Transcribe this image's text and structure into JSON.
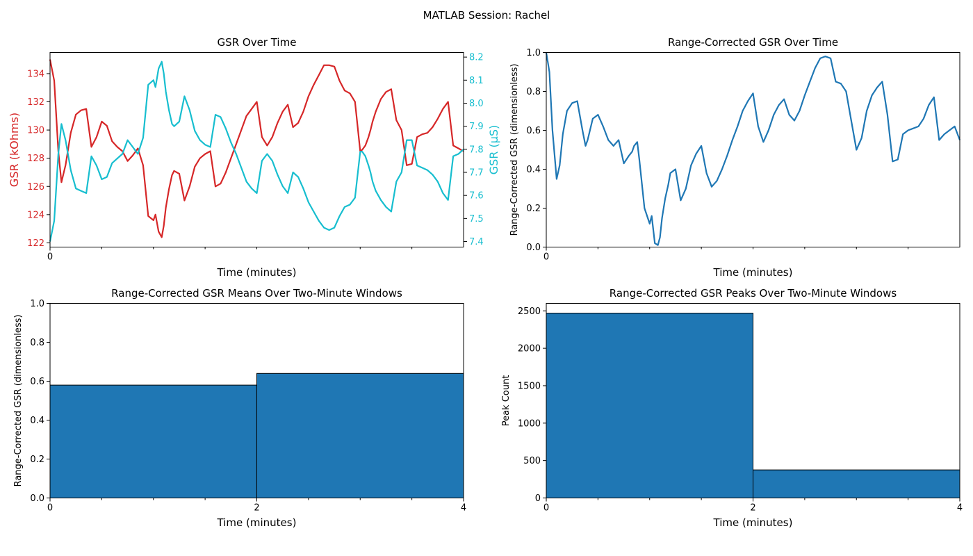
{
  "figure": {
    "suptitle": "MATLAB Session: Rachel"
  },
  "colors": {
    "red": "#d62728",
    "cyan": "#17becf",
    "blue": "#1f77b4",
    "edge": "#000000"
  },
  "chart_data": [
    {
      "type": "line",
      "title": "GSR Over Time",
      "xlabel": "Time (minutes)",
      "xlim": [
        0,
        4
      ],
      "x_ticks": [
        {
          "value": 0,
          "label": "0"
        }
      ],
      "x_minor_ticks": [
        0.5,
        1,
        1.5,
        2,
        2.5,
        3,
        3.5
      ],
      "ylabel_left": "GSR (kOhms)",
      "ylim_left": [
        121.7,
        135.5
      ],
      "yticks_left": [
        122,
        124,
        126,
        128,
        130,
        132,
        134
      ],
      "ylabel_right": "GSR (μS)",
      "ylim_right": [
        7.376,
        8.22
      ],
      "yticks_right": [
        7.4,
        7.5,
        7.6,
        7.7,
        7.8,
        7.9,
        8.0,
        8.1,
        8.2
      ],
      "series": [
        {
          "axis": "left",
          "color": "#d62728",
          "x": [
            0,
            0.04,
            0.08,
            0.11,
            0.15,
            0.2,
            0.25,
            0.3,
            0.35,
            0.4,
            0.45,
            0.5,
            0.55,
            0.6,
            0.65,
            0.7,
            0.75,
            0.8,
            0.85,
            0.9,
            0.95,
            1.0,
            1.02,
            1.05,
            1.08,
            1.1,
            1.12,
            1.15,
            1.18,
            1.2,
            1.25,
            1.3,
            1.35,
            1.4,
            1.45,
            1.5,
            1.55,
            1.6,
            1.65,
            1.7,
            1.75,
            1.8,
            1.85,
            1.9,
            1.95,
            2.0,
            2.05,
            2.1,
            2.15,
            2.2,
            2.25,
            2.3,
            2.35,
            2.4,
            2.45,
            2.5,
            2.55,
            2.6,
            2.65,
            2.7,
            2.75,
            2.8,
            2.85,
            2.9,
            2.95,
            3.0,
            3.02,
            3.05,
            3.08,
            3.1,
            3.12,
            3.15,
            3.2,
            3.25,
            3.3,
            3.35,
            3.4,
            3.45,
            3.5,
            3.55,
            3.6,
            3.65,
            3.7,
            3.75,
            3.8,
            3.85,
            3.9,
            3.95,
            4.0
          ],
          "y": [
            135.0,
            133.5,
            128.5,
            126.3,
            127.5,
            129.8,
            131.1,
            131.4,
            131.5,
            128.8,
            129.5,
            130.6,
            130.3,
            129.2,
            128.8,
            128.5,
            127.8,
            128.2,
            128.7,
            127.5,
            123.9,
            123.6,
            124.0,
            122.8,
            122.4,
            123.2,
            124.5,
            125.8,
            126.8,
            127.1,
            126.9,
            125.0,
            126.0,
            127.4,
            128.0,
            128.3,
            128.5,
            126.0,
            126.2,
            127.0,
            128.0,
            129.0,
            130.0,
            131.0,
            131.5,
            132.0,
            129.5,
            128.9,
            129.5,
            130.5,
            131.3,
            131.8,
            130.2,
            130.5,
            131.3,
            132.4,
            133.2,
            133.9,
            134.6,
            134.6,
            134.5,
            133.5,
            132.8,
            132.6,
            132.0,
            128.5,
            128.6,
            128.9,
            129.5,
            130.0,
            130.6,
            131.3,
            132.2,
            132.7,
            132.9,
            130.7,
            130.0,
            127.5,
            127.6,
            129.5,
            129.7,
            129.8,
            130.2,
            130.8,
            131.5,
            132.0,
            128.9,
            128.7,
            128.5
          ]
        },
        {
          "axis": "right",
          "color": "#17becf",
          "x": [
            0,
            0.04,
            0.08,
            0.11,
            0.15,
            0.2,
            0.25,
            0.3,
            0.35,
            0.4,
            0.45,
            0.5,
            0.55,
            0.6,
            0.65,
            0.7,
            0.75,
            0.8,
            0.85,
            0.9,
            0.95,
            1.0,
            1.02,
            1.05,
            1.08,
            1.1,
            1.12,
            1.15,
            1.18,
            1.2,
            1.25,
            1.3,
            1.35,
            1.4,
            1.45,
            1.5,
            1.55,
            1.6,
            1.65,
            1.7,
            1.75,
            1.8,
            1.85,
            1.9,
            1.95,
            2.0,
            2.05,
            2.1,
            2.15,
            2.2,
            2.25,
            2.3,
            2.35,
            2.4,
            2.45,
            2.5,
            2.55,
            2.6,
            2.65,
            2.7,
            2.75,
            2.8,
            2.85,
            2.9,
            2.95,
            3.0,
            3.02,
            3.05,
            3.08,
            3.1,
            3.12,
            3.15,
            3.2,
            3.25,
            3.3,
            3.35,
            3.4,
            3.45,
            3.5,
            3.55,
            3.6,
            3.65,
            3.7,
            3.75,
            3.8,
            3.85,
            3.9,
            3.95,
            4.0
          ],
          "y": [
            7.4,
            7.49,
            7.78,
            7.91,
            7.84,
            7.71,
            7.63,
            7.62,
            7.61,
            7.77,
            7.73,
            7.67,
            7.68,
            7.74,
            7.76,
            7.78,
            7.84,
            7.81,
            7.78,
            7.85,
            8.08,
            8.1,
            8.07,
            8.15,
            8.18,
            8.13,
            8.05,
            7.97,
            7.91,
            7.9,
            7.92,
            8.03,
            7.97,
            7.88,
            7.84,
            7.82,
            7.81,
            7.95,
            7.94,
            7.89,
            7.83,
            7.78,
            7.72,
            7.66,
            7.63,
            7.61,
            7.75,
            7.78,
            7.75,
            7.69,
            7.64,
            7.61,
            7.7,
            7.68,
            7.63,
            7.57,
            7.53,
            7.49,
            7.46,
            7.45,
            7.46,
            7.51,
            7.55,
            7.56,
            7.59,
            7.79,
            7.79,
            7.77,
            7.73,
            7.7,
            7.66,
            7.62,
            7.58,
            7.55,
            7.53,
            7.66,
            7.7,
            7.84,
            7.84,
            7.73,
            7.72,
            7.71,
            7.69,
            7.66,
            7.61,
            7.58,
            7.77,
            7.78,
            7.8
          ]
        }
      ]
    },
    {
      "type": "line",
      "title": "Range-Corrected GSR Over Time",
      "xlabel": "Time (minutes)",
      "ylabel": "Range-Corrected GSR (dimensionless)",
      "xlim": [
        0,
        4
      ],
      "x_ticks": [
        {
          "value": 0,
          "label": "0"
        }
      ],
      "x_minor_ticks": [
        0.5,
        1,
        1.5,
        2,
        2.5,
        3,
        3.5
      ],
      "ylim": [
        0,
        1
      ],
      "yticks": [
        0,
        0.2,
        0.4,
        0.6,
        0.8,
        1.0
      ],
      "ytick_labels": [
        "0.0",
        "0.2",
        "0.4",
        "0.6",
        "0.8",
        "1.0"
      ],
      "series": [
        {
          "color": "#1f77b4",
          "x": [
            0,
            0.03,
            0.06,
            0.1,
            0.13,
            0.16,
            0.2,
            0.25,
            0.3,
            0.35,
            0.38,
            0.4,
            0.45,
            0.5,
            0.55,
            0.6,
            0.65,
            0.7,
            0.75,
            0.8,
            0.83,
            0.85,
            0.88,
            0.9,
            0.95,
            1.0,
            1.02,
            1.05,
            1.08,
            1.1,
            1.12,
            1.15,
            1.18,
            1.2,
            1.25,
            1.3,
            1.35,
            1.4,
            1.45,
            1.5,
            1.55,
            1.6,
            1.65,
            1.7,
            1.75,
            1.8,
            1.85,
            1.9,
            1.95,
            2.0,
            2.05,
            2.1,
            2.15,
            2.2,
            2.25,
            2.3,
            2.35,
            2.4,
            2.45,
            2.5,
            2.55,
            2.6,
            2.65,
            2.7,
            2.75,
            2.8,
            2.85,
            2.9,
            2.95,
            3.0,
            3.05,
            3.1,
            3.15,
            3.2,
            3.25,
            3.3,
            3.35,
            3.4,
            3.45,
            3.5,
            3.55,
            3.6,
            3.65,
            3.7,
            3.75,
            3.8,
            3.85,
            3.9,
            3.95,
            4.0
          ],
          "y": [
            1.0,
            0.9,
            0.6,
            0.35,
            0.42,
            0.58,
            0.7,
            0.74,
            0.75,
            0.6,
            0.52,
            0.55,
            0.66,
            0.68,
            0.62,
            0.55,
            0.52,
            0.55,
            0.43,
            0.47,
            0.49,
            0.52,
            0.54,
            0.45,
            0.2,
            0.12,
            0.16,
            0.02,
            0.01,
            0.05,
            0.15,
            0.25,
            0.32,
            0.38,
            0.4,
            0.24,
            0.3,
            0.42,
            0.48,
            0.52,
            0.38,
            0.31,
            0.34,
            0.4,
            0.47,
            0.55,
            0.62,
            0.7,
            0.75,
            0.79,
            0.62,
            0.54,
            0.6,
            0.68,
            0.73,
            0.76,
            0.68,
            0.65,
            0.7,
            0.78,
            0.85,
            0.92,
            0.97,
            0.98,
            0.97,
            0.85,
            0.84,
            0.8,
            0.65,
            0.5,
            0.56,
            0.7,
            0.78,
            0.82,
            0.85,
            0.68,
            0.44,
            0.45,
            0.58,
            0.6,
            0.61,
            0.62,
            0.66,
            0.73,
            0.77,
            0.55,
            0.58,
            0.6,
            0.62,
            0.55
          ]
        }
      ]
    },
    {
      "type": "bar",
      "title": "Range-Corrected GSR Means Over Two-Minute Windows",
      "xlabel": "Time (minutes)",
      "ylabel": "Range-Corrected GSR (dimensionless)",
      "xlim": [
        0,
        4
      ],
      "x_ticks": [
        {
          "value": 0,
          "label": "0"
        },
        {
          "value": 2,
          "label": "2"
        },
        {
          "value": 4,
          "label": "4"
        }
      ],
      "x_minor_ticks": [
        0.5,
        1,
        1.5,
        2.5,
        3,
        3.5
      ],
      "ylim": [
        0,
        1
      ],
      "yticks": [
        0,
        0.2,
        0.4,
        0.6,
        0.8,
        1.0
      ],
      "ytick_labels": [
        "0.0",
        "0.2",
        "0.4",
        "0.6",
        "0.8",
        "1.0"
      ],
      "color": "#1f77b4",
      "bins": [
        {
          "start": 0,
          "end": 2,
          "value": 0.58
        },
        {
          "start": 2,
          "end": 4,
          "value": 0.64
        }
      ]
    },
    {
      "type": "bar",
      "title": "Range-Corrected GSR Peaks Over Two-Minute Windows",
      "xlabel": "Time (minutes)",
      "ylabel": "Peak Count",
      "xlim": [
        0,
        4
      ],
      "x_ticks": [
        {
          "value": 0,
          "label": "0"
        },
        {
          "value": 2,
          "label": "2"
        },
        {
          "value": 4,
          "label": "4"
        }
      ],
      "x_minor_ticks": [
        0.5,
        1,
        1.5,
        2.5,
        3,
        3.5
      ],
      "ylim": [
        0,
        2600
      ],
      "yticks": [
        0,
        500,
        1000,
        1500,
        2000,
        2500
      ],
      "ytick_labels": [
        "0",
        "500",
        "1000",
        "1500",
        "2000",
        "2500"
      ],
      "color": "#1f77b4",
      "bins": [
        {
          "start": 0,
          "end": 2,
          "value": 2470
        },
        {
          "start": 2,
          "end": 4,
          "value": 375
        }
      ]
    }
  ]
}
